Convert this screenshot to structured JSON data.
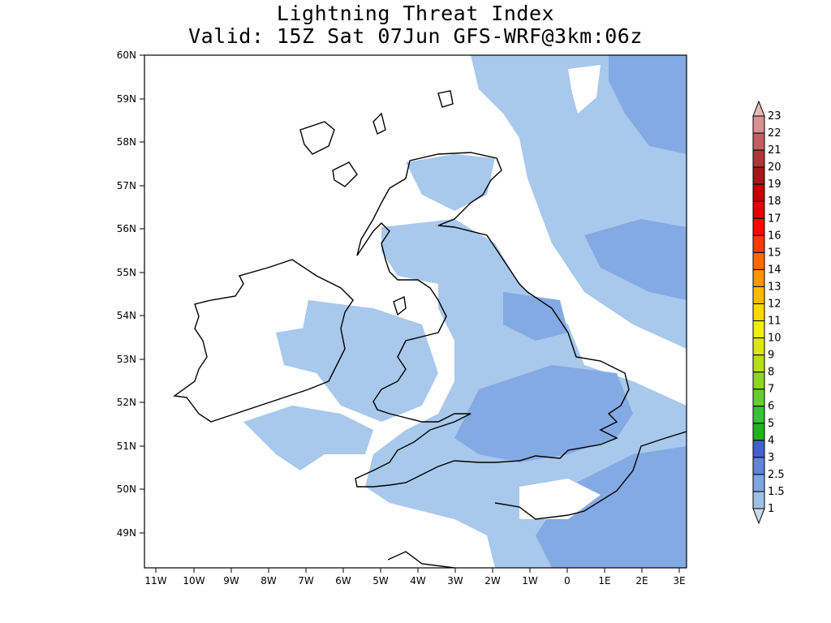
{
  "title": {
    "line1": "Lightning Threat Index",
    "line2": "Valid: 15Z Sat 07Jun GFS-WRF@3km:06z"
  },
  "axes": {
    "lat_labels": [
      "60N",
      "59N",
      "58N",
      "57N",
      "56N",
      "55N",
      "54N",
      "53N",
      "52N",
      "51N",
      "50N",
      "49N"
    ],
    "lon_labels": [
      "11W",
      "10W",
      "9W",
      "8W",
      "7W",
      "6W",
      "5W",
      "4W",
      "3W",
      "2W",
      "1W",
      "0",
      "1E",
      "2E",
      "3E"
    ]
  },
  "colorbar": {
    "labels": [
      "1",
      "1.5",
      "2.5",
      "3",
      "4",
      "5",
      "6",
      "7",
      "8",
      "9",
      "10",
      "11",
      "12",
      "13",
      "14",
      "15",
      "16",
      "17",
      "18",
      "19",
      "20",
      "21",
      "22",
      "23"
    ],
    "colors": [
      "#c7dcf2",
      "#9cc1e8",
      "#7ea6e0",
      "#5f86d8",
      "#3f63c8",
      "#22b022",
      "#38c038",
      "#64cc34",
      "#8ed424",
      "#b6de1a",
      "#dce614",
      "#f0ee10",
      "#fbd900",
      "#fbbb00",
      "#fb9500",
      "#fb6a00",
      "#fb3a00",
      "#f80800",
      "#e60000",
      "#c40000",
      "#a41818",
      "#aa3838",
      "#c06060",
      "#d99090",
      "#eab8b8"
    ]
  },
  "map": {
    "region": "British Isles",
    "shading_colors": {
      "low": "#a8c8ec",
      "mid": "#84aae4",
      "high": "#6f96dc"
    }
  }
}
